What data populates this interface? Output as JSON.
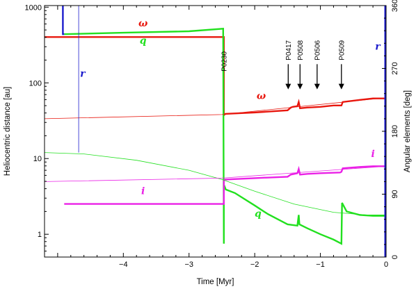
{
  "chart_data": {
    "type": "line",
    "xlabel": "Time [Myr]",
    "ylabel_left": "Heliocentric distance [au]",
    "ylabel_right": "Angular elements [deg]",
    "xlim": [
      -5.2,
      0
    ],
    "ylim_left": [
      0.5,
      1050
    ],
    "yscale_left": "log",
    "ylim_right": [
      0,
      360
    ],
    "x_ticks": [
      "−4",
      "−3",
      "−2",
      "−1",
      "0"
    ],
    "x_tick_values": [
      -4,
      -3,
      -2,
      -1,
      0
    ],
    "y_left_ticks": [
      "1",
      "10",
      "100",
      "1000"
    ],
    "y_left_tick_values": [
      1,
      10,
      100,
      1000
    ],
    "y_right_ticks": [
      "0",
      "90",
      "180",
      "270",
      "360"
    ],
    "y_right_tick_values": [
      0,
      90,
      180,
      270,
      360
    ],
    "grid": false,
    "colors": {
      "omega": "#e8170e",
      "q": "#22e01f",
      "i": "#ea20e6",
      "r": "#1c1ccc",
      "axis": "#000000"
    },
    "series": [
      {
        "name": "ω",
        "key": "omega",
        "axis": "right",
        "color": "#e8170e",
        "width": 2.4,
        "x": [
          -5.2,
          -4.9,
          -2.47,
          -2.47,
          -2.45,
          -2.0,
          -1.5,
          -1.45,
          -1.42,
          -1.35,
          -1.33,
          -1.31,
          -1.2,
          -1.0,
          -0.8,
          -0.68,
          -0.66,
          -0.4,
          -0.2,
          0
        ],
        "y": [
          315,
          315,
          315,
          203,
          205,
          207,
          210,
          214,
          215,
          216,
          222,
          213,
          214,
          215,
          217,
          217,
          222,
          225,
          227,
          227
        ]
      },
      {
        "name": "q",
        "key": "q",
        "axis": "left",
        "color": "#22e01f",
        "width": 2.4,
        "x": [
          -4.9,
          -4.0,
          -3.0,
          -2.48,
          -2.47,
          -2.47,
          -2.44,
          -2.3,
          -2.0,
          -1.8,
          -1.5,
          -1.35,
          -1.33,
          -1.32,
          -1.2,
          -1.0,
          -0.8,
          -0.68,
          -0.67,
          -0.6,
          -0.4,
          -0.2,
          0
        ],
        "y": [
          440,
          460,
          480,
          520,
          0.75,
          4.5,
          3.9,
          3.5,
          2.4,
          1.85,
          1.35,
          1.3,
          1.8,
          1.35,
          1.2,
          1.0,
          0.85,
          0.75,
          2.6,
          2.0,
          1.8,
          1.75,
          1.75
        ]
      },
      {
        "name": "i",
        "key": "i",
        "axis": "right",
        "color": "#ea20e6",
        "width": 2.4,
        "x": [
          -4.9,
          -2.47,
          -2.47,
          -2.45,
          -2.0,
          -1.5,
          -1.45,
          -1.35,
          -1.33,
          -1.31,
          -1.2,
          -1.0,
          -0.7,
          -0.68,
          -0.66,
          -0.4,
          -0.2,
          0
        ],
        "y": [
          76,
          76,
          110,
          111,
          113,
          115,
          118,
          120,
          126,
          118,
          119,
          120,
          121,
          122,
          127,
          129,
          130,
          130
        ]
      },
      {
        "name": "r",
        "key": "r",
        "axis": "left",
        "color": "#1c1ccc",
        "width": 2.4,
        "x": [
          -4.92,
          -4.92,
          -4.9
        ],
        "y": [
          1050,
          440,
          440
        ]
      },
      {
        "name": "ω",
        "key": "omega-thin",
        "axis": "right",
        "color": "#e8170e",
        "width": 0.8,
        "x": [
          -5.2,
          -2.5,
          0
        ],
        "y": [
          198,
          204,
          228
        ]
      },
      {
        "name": "q",
        "key": "q-thin",
        "axis": "left",
        "color": "#22e01f",
        "width": 0.8,
        "x": [
          -5.2,
          -4.6,
          -3.8,
          -3.0,
          -2.5,
          -2.0,
          -1.4,
          -0.8,
          -0.3,
          0
        ],
        "y": [
          12,
          11.5,
          9.5,
          7.0,
          5.3,
          3.7,
          2.5,
          1.95,
          1.8,
          1.8
        ]
      },
      {
        "name": "i",
        "key": "i-thin",
        "axis": "right",
        "color": "#ea20e6",
        "width": 0.8,
        "x": [
          -5.2,
          -2.5,
          0
        ],
        "y": [
          108,
          113,
          130
        ]
      },
      {
        "name": "r",
        "key": "r-thin",
        "axis": "left",
        "color": "#1c1ccc",
        "width": 0.8,
        "x": [
          -4.68,
          -4.68
        ],
        "y": [
          1050,
          12
        ]
      }
    ],
    "r_right_bar": {
      "name": "r",
      "axis": "right",
      "x": 0,
      "y": [
        0,
        360
      ]
    },
    "series_labels": [
      {
        "text": "ω",
        "key": "omega",
        "x": -3.7,
        "axis": "right",
        "y": 330
      },
      {
        "text": "q",
        "key": "q",
        "x": -3.7,
        "axis": "left",
        "y": 330
      },
      {
        "text": "r",
        "key": "r",
        "x": -4.62,
        "axis": "left",
        "y": 120
      },
      {
        "text": "ω",
        "key": "omega",
        "x": -1.9,
        "axis": "right",
        "y": 226
      },
      {
        "text": "i",
        "key": "i",
        "x": -0.2,
        "axis": "right",
        "y": 143
      },
      {
        "text": "i",
        "key": "i",
        "x": -3.7,
        "axis": "right",
        "y": 90
      },
      {
        "text": "q",
        "key": "q",
        "x": -1.95,
        "axis": "left",
        "y": 1.7
      },
      {
        "text": "r",
        "key": "r",
        "x": 0,
        "axis": "right",
        "y": 297
      }
    ],
    "annotations": [
      {
        "text": "P0230",
        "x": -2.47,
        "axis": "right",
        "y_text": 280,
        "arrow": false
      },
      {
        "text": "P0417",
        "x": -1.49,
        "axis": "right",
        "y_text": 296,
        "y_tip": 240,
        "arrow": true
      },
      {
        "text": "P0508",
        "x": -1.31,
        "axis": "right",
        "y_text": 296,
        "y_tip": 240,
        "arrow": true
      },
      {
        "text": "P0506",
        "x": -1.05,
        "axis": "right",
        "y_text": 296,
        "y_tip": 240,
        "arrow": true
      },
      {
        "text": "P0509",
        "x": -0.68,
        "axis": "right",
        "y_text": 296,
        "y_tip": 240,
        "arrow": true
      }
    ]
  }
}
